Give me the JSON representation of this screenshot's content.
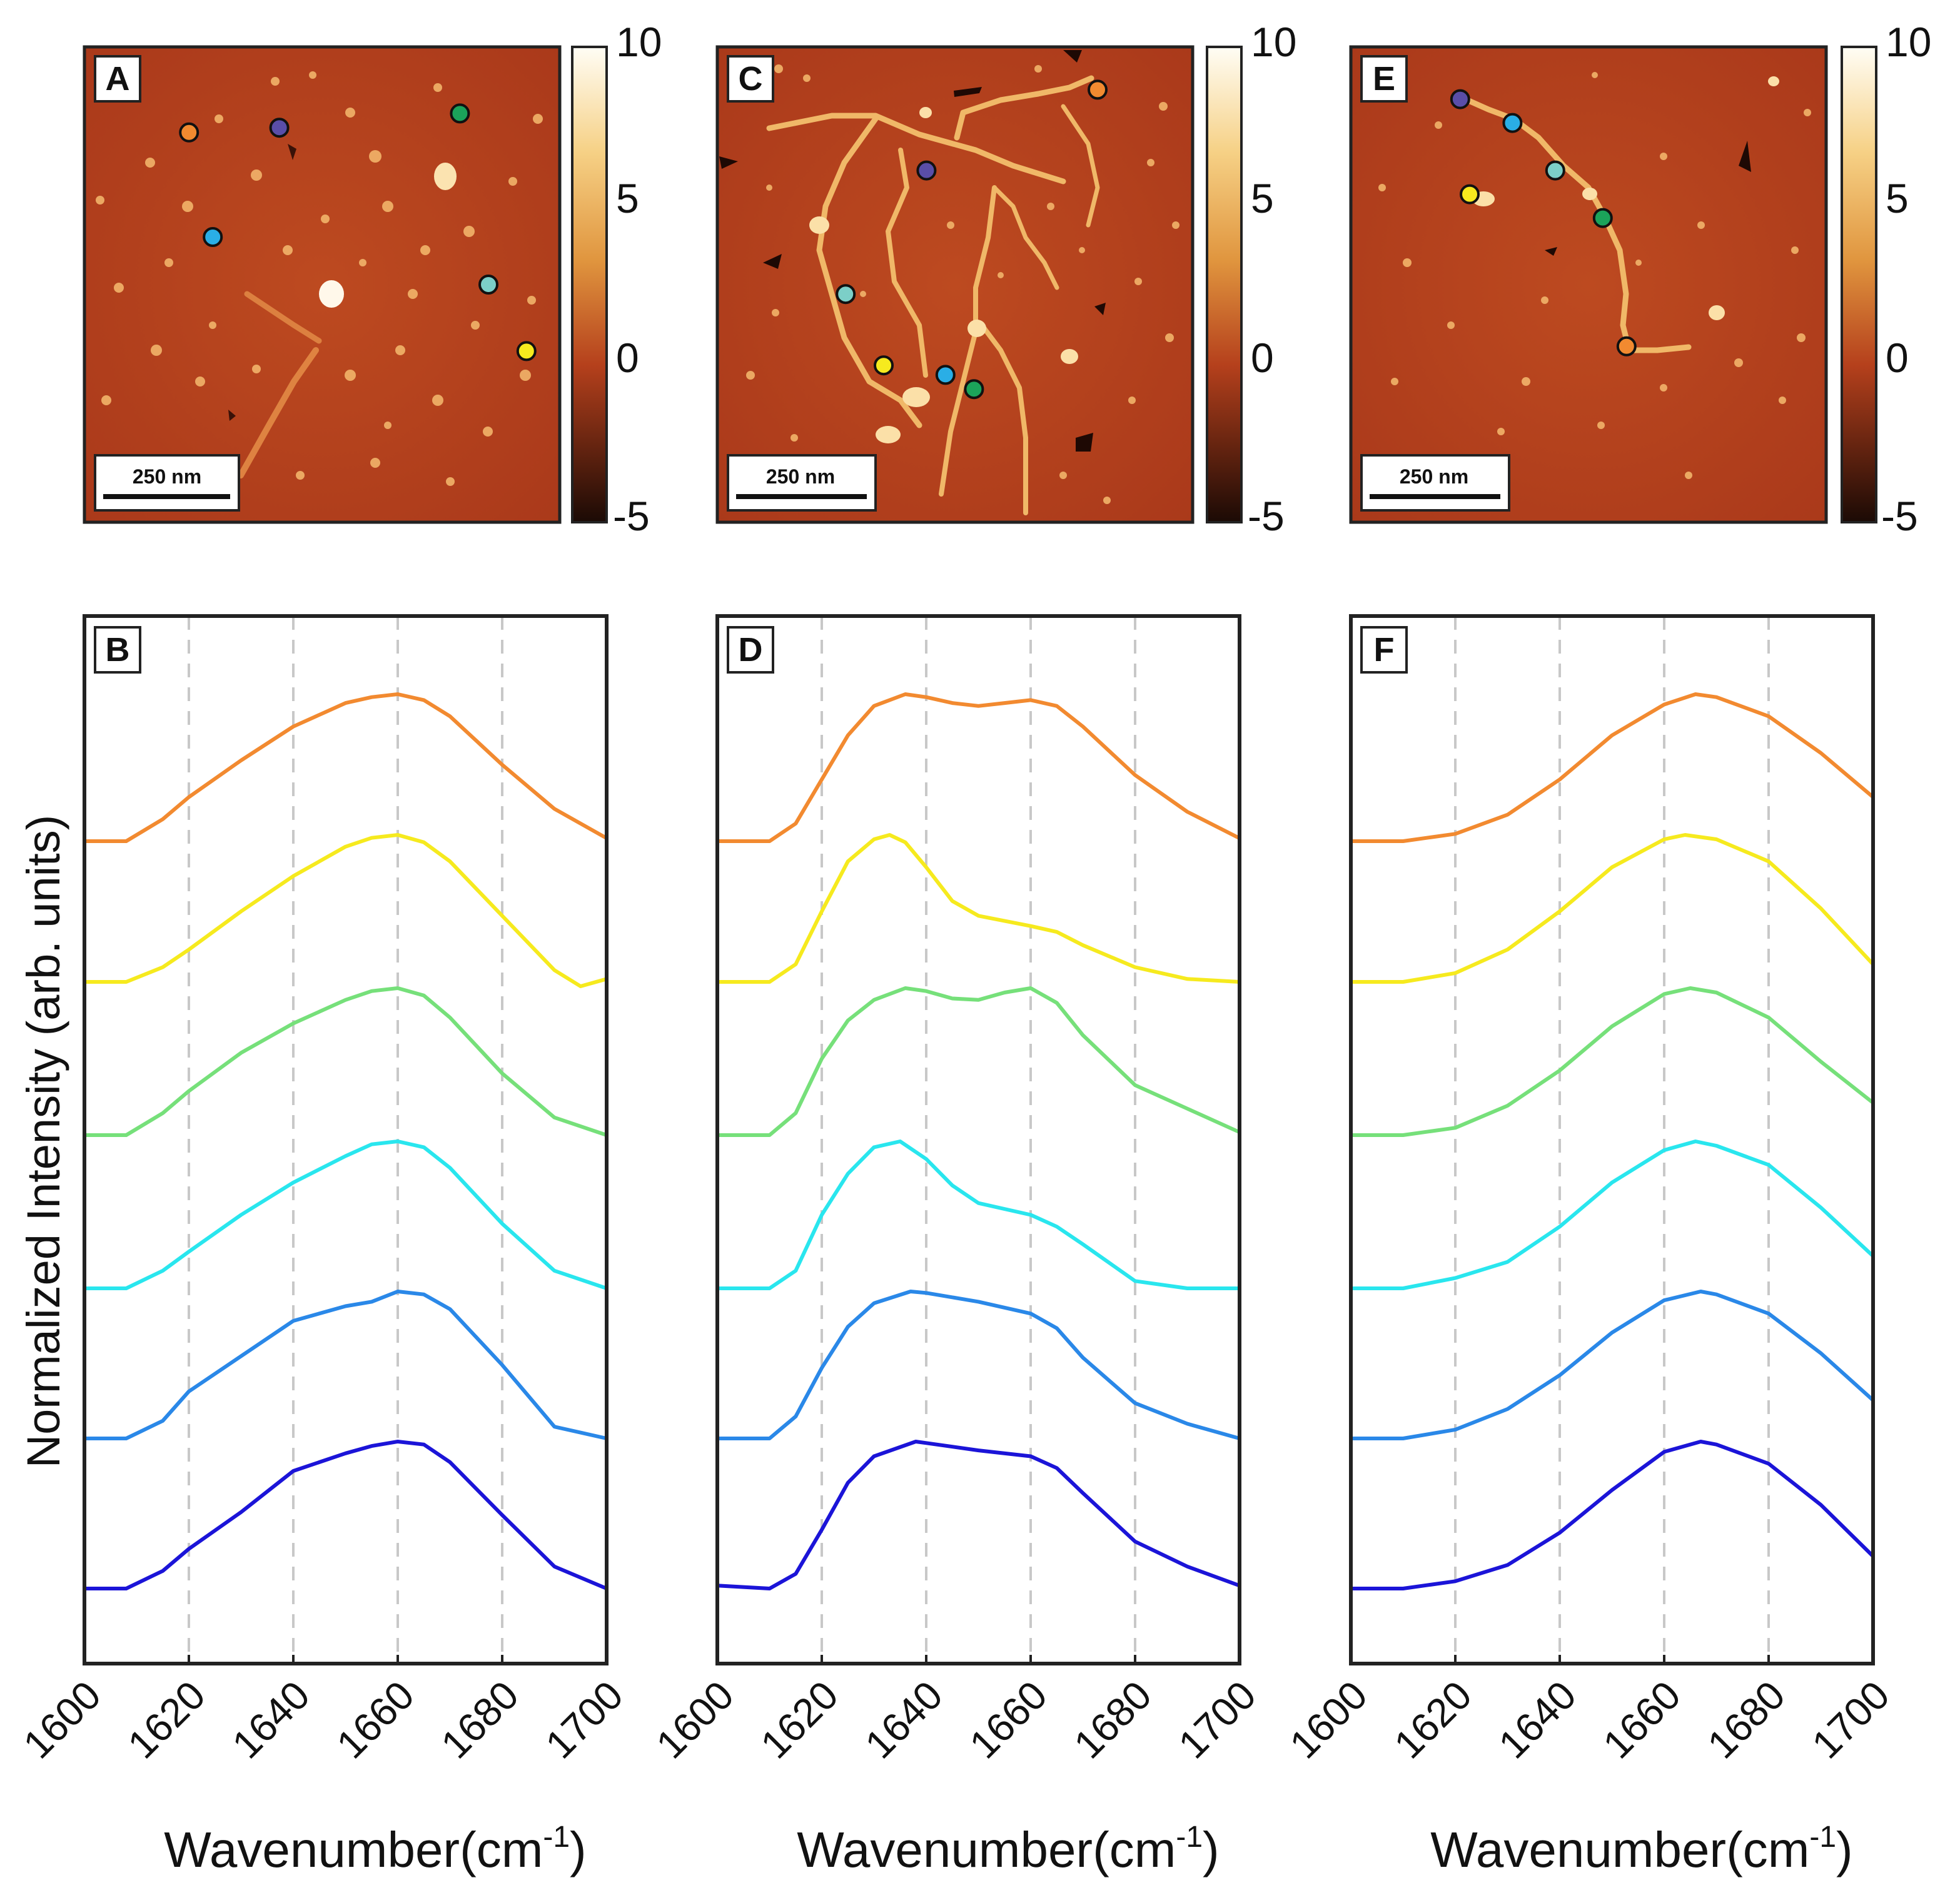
{
  "figure": {
    "ylabel": "Normalized Intensity (arb. units)",
    "xlabel_main": "Wavenumber(cm",
    "xlabel_sup": "-1",
    "xlabel_close": ")"
  },
  "colors": {
    "afm_low": "#1b0a05",
    "afm_mid": "#b5401c",
    "afm_high_1": "#e0953e",
    "afm_high_2": "#f6d186",
    "afm_top": "#fffdf5",
    "grid": "#c8c8c8",
    "frame": "#222222"
  },
  "point_colors": [
    "#f28a30",
    "#f6ea1e",
    "#76e07a",
    "#29e6ee",
    "#2a88e8",
    "#1b14d8"
  ],
  "afm_panels": [
    {
      "label": "A",
      "scale_bar": "250 nm",
      "colorbar": {
        "ticks": [
          "10",
          "5",
          "0",
          "-5"
        ],
        "range": [
          -5,
          10
        ]
      },
      "markers": [
        {
          "color": "#f28a30",
          "u": 0.22,
          "v": 0.18
        },
        {
          "color": "#5a4ea8",
          "u": 0.41,
          "v": 0.17
        },
        {
          "color": "#1ba35a",
          "u": 0.79,
          "v": 0.14
        },
        {
          "color": "#2aaee6",
          "u": 0.27,
          "v": 0.4
        },
        {
          "color": "#7ccfc8",
          "u": 0.85,
          "v": 0.5
        },
        {
          "color": "#f6ea1e",
          "u": 0.93,
          "v": 0.64
        }
      ]
    },
    {
      "label": "C",
      "scale_bar": "250 nm",
      "colorbar": {
        "ticks": [
          "10",
          "5",
          "0",
          "-5"
        ],
        "range": [
          -5,
          10
        ]
      },
      "markers": [
        {
          "color": "#f28a30",
          "u": 0.8,
          "v": 0.09
        },
        {
          "color": "#5a4ea8",
          "u": 0.44,
          "v": 0.26
        },
        {
          "color": "#7ccfc8",
          "u": 0.27,
          "v": 0.52
        },
        {
          "color": "#f6ea1e",
          "u": 0.35,
          "v": 0.67
        },
        {
          "color": "#2aaee6",
          "u": 0.48,
          "v": 0.69
        },
        {
          "color": "#1ba35a",
          "u": 0.54,
          "v": 0.72
        }
      ]
    },
    {
      "label": "E",
      "scale_bar": "250 nm",
      "colorbar": {
        "ticks": [
          "10",
          "5",
          "0",
          "-5"
        ],
        "range": [
          -5,
          10
        ]
      },
      "markers": [
        {
          "color": "#5a4ea8",
          "u": 0.23,
          "v": 0.11
        },
        {
          "color": "#2aaee6",
          "u": 0.34,
          "v": 0.16
        },
        {
          "color": "#7ccfc8",
          "u": 0.43,
          "v": 0.26
        },
        {
          "color": "#f6ea1e",
          "u": 0.25,
          "v": 0.31
        },
        {
          "color": "#1ba35a",
          "u": 0.53,
          "v": 0.36
        },
        {
          "color": "#f28a30",
          "u": 0.58,
          "v": 0.63
        }
      ]
    }
  ],
  "chart_data": [
    {
      "label": "B",
      "type": "line",
      "xlabel": "Wavenumber(cm-1)",
      "ylabel": "Normalized Intensity (arb. units)",
      "xlim": [
        1600,
        1700
      ],
      "xticks": [
        "1600",
        "1620",
        "1640",
        "1660",
        "1680",
        "1700"
      ],
      "grid_x": [
        1620,
        1640,
        1660,
        1680
      ],
      "offset_step": 1,
      "series": [
        {
          "color": "#f28a30",
          "x": [
            1600,
            1608,
            1615,
            1620,
            1630,
            1640,
            1650,
            1655,
            1660,
            1665,
            1670,
            1680,
            1690,
            1700
          ],
          "y": [
            0,
            0,
            0.15,
            0.3,
            0.55,
            0.78,
            0.94,
            0.98,
            1.0,
            0.96,
            0.85,
            0.52,
            0.22,
            0.02
          ]
        },
        {
          "color": "#f6ea1e",
          "x": [
            1600,
            1608,
            1615,
            1620,
            1630,
            1640,
            1650,
            1655,
            1660,
            1665,
            1670,
            1680,
            1690,
            1695,
            1700
          ],
          "y": [
            0,
            0,
            0.1,
            0.22,
            0.48,
            0.72,
            0.92,
            0.98,
            1.0,
            0.95,
            0.82,
            0.45,
            0.08,
            -0.03,
            0.02
          ]
        },
        {
          "color": "#76e07a",
          "x": [
            1600,
            1608,
            1615,
            1620,
            1630,
            1640,
            1650,
            1655,
            1660,
            1665,
            1670,
            1680,
            1690,
            1700
          ],
          "y": [
            0,
            0,
            0.15,
            0.3,
            0.56,
            0.76,
            0.92,
            0.98,
            1.0,
            0.95,
            0.8,
            0.42,
            0.12,
            0.0
          ]
        },
        {
          "color": "#29e6ee",
          "x": [
            1600,
            1608,
            1615,
            1620,
            1630,
            1640,
            1650,
            1655,
            1660,
            1665,
            1670,
            1680,
            1690,
            1700
          ],
          "y": [
            0,
            0,
            0.12,
            0.25,
            0.5,
            0.72,
            0.9,
            0.98,
            1.0,
            0.96,
            0.82,
            0.44,
            0.12,
            0.0
          ]
        },
        {
          "color": "#2a88e8",
          "x": [
            1600,
            1608,
            1615,
            1620,
            1630,
            1640,
            1650,
            1655,
            1660,
            1665,
            1670,
            1680,
            1690,
            1700
          ],
          "y": [
            0,
            0,
            0.12,
            0.32,
            0.56,
            0.8,
            0.9,
            0.93,
            1.0,
            0.98,
            0.88,
            0.5,
            0.08,
            0.0
          ]
        },
        {
          "color": "#1b14d8",
          "x": [
            1600,
            1608,
            1615,
            1620,
            1630,
            1640,
            1645,
            1650,
            1655,
            1660,
            1665,
            1670,
            1680,
            1690,
            1700
          ],
          "y": [
            0,
            0,
            0.12,
            0.27,
            0.52,
            0.8,
            0.86,
            0.92,
            0.97,
            1.0,
            0.98,
            0.86,
            0.5,
            0.15,
            0.0
          ]
        }
      ]
    },
    {
      "label": "D",
      "type": "line",
      "xlabel": "Wavenumber(cm-1)",
      "ylabel": "Normalized Intensity (arb. units)",
      "xlim": [
        1600,
        1700
      ],
      "xticks": [
        "1600",
        "1620",
        "1640",
        "1660",
        "1680",
        "1700"
      ],
      "grid_x": [
        1620,
        1640,
        1660,
        1680
      ],
      "offset_step": 1,
      "series": [
        {
          "color": "#f28a30",
          "x": [
            1600,
            1610,
            1615,
            1620,
            1625,
            1630,
            1636,
            1640,
            1645,
            1650,
            1655,
            1660,
            1665,
            1670,
            1680,
            1690,
            1700
          ],
          "y": [
            0,
            0,
            0.12,
            0.42,
            0.72,
            0.92,
            1.0,
            0.98,
            0.94,
            0.92,
            0.94,
            0.96,
            0.92,
            0.78,
            0.45,
            0.2,
            0.02
          ]
        },
        {
          "color": "#f6ea1e",
          "x": [
            1600,
            1610,
            1615,
            1620,
            1625,
            1630,
            1633,
            1636,
            1640,
            1645,
            1650,
            1660,
            1665,
            1670,
            1680,
            1690,
            1700
          ],
          "y": [
            0,
            0,
            0.12,
            0.48,
            0.82,
            0.97,
            1.0,
            0.95,
            0.78,
            0.55,
            0.45,
            0.38,
            0.34,
            0.25,
            0.1,
            0.02,
            0.0
          ]
        },
        {
          "color": "#76e07a",
          "x": [
            1600,
            1610,
            1615,
            1620,
            1625,
            1630,
            1636,
            1640,
            1645,
            1650,
            1655,
            1660,
            1665,
            1670,
            1680,
            1690,
            1700
          ],
          "y": [
            0,
            0,
            0.15,
            0.52,
            0.78,
            0.92,
            1.0,
            0.98,
            0.93,
            0.92,
            0.97,
            1.0,
            0.9,
            0.68,
            0.34,
            0.18,
            0.02
          ]
        },
        {
          "color": "#29e6ee",
          "x": [
            1600,
            1610,
            1615,
            1620,
            1625,
            1630,
            1635,
            1640,
            1645,
            1650,
            1660,
            1665,
            1670,
            1680,
            1690,
            1700
          ],
          "y": [
            0,
            0,
            0.12,
            0.5,
            0.78,
            0.96,
            1.0,
            0.88,
            0.7,
            0.58,
            0.5,
            0.42,
            0.3,
            0.05,
            0.0,
            0.0
          ]
        },
        {
          "color": "#2a88e8",
          "x": [
            1600,
            1610,
            1615,
            1620,
            1625,
            1630,
            1637,
            1640,
            1650,
            1660,
            1665,
            1670,
            1680,
            1690,
            1700
          ],
          "y": [
            0,
            0,
            0.15,
            0.48,
            0.76,
            0.92,
            1.0,
            0.99,
            0.93,
            0.85,
            0.75,
            0.55,
            0.24,
            0.1,
            0.0
          ]
        },
        {
          "color": "#1b14d8",
          "x": [
            1600,
            1610,
            1615,
            1620,
            1625,
            1630,
            1638,
            1640,
            1650,
            1660,
            1665,
            1670,
            1680,
            1690,
            1700
          ],
          "y": [
            0.02,
            0,
            0.1,
            0.4,
            0.72,
            0.9,
            1.0,
            0.99,
            0.94,
            0.9,
            0.82,
            0.65,
            0.32,
            0.15,
            0.02
          ]
        }
      ]
    },
    {
      "label": "F",
      "type": "line",
      "xlabel": "Wavenumber(cm-1)",
      "ylabel": "Normalized Intensity (arb. units)",
      "xlim": [
        1600,
        1700
      ],
      "xticks": [
        "1600",
        "1620",
        "1640",
        "1660",
        "1680",
        "1700"
      ],
      "grid_x": [
        1620,
        1640,
        1660,
        1680
      ],
      "offset_step": 1,
      "series": [
        {
          "color": "#f28a30",
          "x": [
            1600,
            1610,
            1620,
            1630,
            1640,
            1650,
            1660,
            1666,
            1670,
            1680,
            1690,
            1700
          ],
          "y": [
            0,
            0,
            0.05,
            0.18,
            0.42,
            0.72,
            0.93,
            1.0,
            0.98,
            0.85,
            0.6,
            0.3
          ]
        },
        {
          "color": "#f6ea1e",
          "x": [
            1600,
            1610,
            1620,
            1630,
            1640,
            1650,
            1660,
            1664,
            1670,
            1680,
            1690,
            1700
          ],
          "y": [
            0,
            0,
            0.06,
            0.22,
            0.48,
            0.78,
            0.97,
            1.0,
            0.97,
            0.82,
            0.5,
            0.12
          ]
        },
        {
          "color": "#76e07a",
          "x": [
            1600,
            1610,
            1620,
            1630,
            1640,
            1650,
            1660,
            1665,
            1670,
            1680,
            1690,
            1700
          ],
          "y": [
            0,
            0,
            0.05,
            0.2,
            0.44,
            0.74,
            0.96,
            1.0,
            0.97,
            0.8,
            0.5,
            0.22
          ]
        },
        {
          "color": "#29e6ee",
          "x": [
            1600,
            1610,
            1620,
            1630,
            1640,
            1650,
            1660,
            1666,
            1670,
            1680,
            1690,
            1700
          ],
          "y": [
            0,
            0,
            0.07,
            0.18,
            0.42,
            0.72,
            0.94,
            1.0,
            0.97,
            0.84,
            0.55,
            0.22
          ]
        },
        {
          "color": "#2a88e8",
          "x": [
            1600,
            1610,
            1620,
            1630,
            1640,
            1650,
            1660,
            1667,
            1670,
            1680,
            1690,
            1700
          ],
          "y": [
            0,
            0,
            0.06,
            0.2,
            0.43,
            0.72,
            0.94,
            1.0,
            0.98,
            0.85,
            0.58,
            0.26
          ]
        },
        {
          "color": "#1b14d8",
          "x": [
            1600,
            1610,
            1620,
            1630,
            1640,
            1650,
            1660,
            1667,
            1670,
            1680,
            1690,
            1700
          ],
          "y": [
            0,
            0,
            0.05,
            0.16,
            0.38,
            0.67,
            0.93,
            1.0,
            0.98,
            0.85,
            0.57,
            0.22
          ]
        }
      ]
    }
  ]
}
